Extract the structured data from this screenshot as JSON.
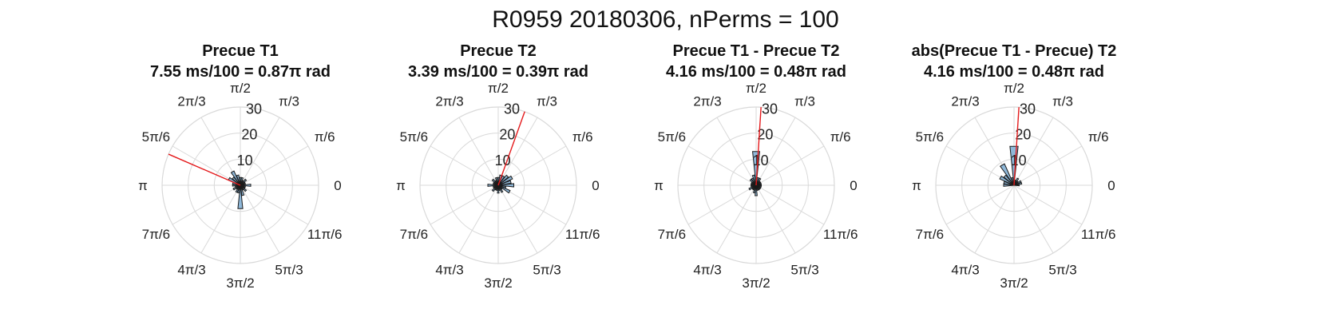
{
  "figure": {
    "title": "R0959 20180306, nPerms = 100"
  },
  "axes_common": {
    "theta_labels": [
      "0",
      "π/6",
      "π/3",
      "π/2",
      "2π/3",
      "5π/6",
      "π",
      "7π/6",
      "4π/3",
      "3π/2",
      "5π/3",
      "11π/6"
    ],
    "r_ticks": [
      "10",
      "20",
      "30"
    ],
    "r_max": 30,
    "bar_fill": "#8fb8d9",
    "bar_stroke": "#1a1a1a",
    "mean_line_color": "#e41a1c",
    "grid_color": "#d9d9d9"
  },
  "chart_data": [
    {
      "type": "polar-histogram",
      "title": "Precue T1",
      "subtitle": "7.55 ms/100 = 0.87π rad",
      "mean_angle_pi": 0.87,
      "bins_deg": [
        0,
        15,
        30,
        45,
        60,
        75,
        90,
        105,
        120,
        135,
        150,
        165,
        180,
        195,
        210,
        225,
        240,
        255,
        270,
        285,
        300,
        315,
        330,
        345
      ],
      "values": [
        4,
        2,
        2,
        3,
        2,
        3,
        3,
        4,
        6,
        4,
        5,
        3,
        3,
        2,
        3,
        2,
        3,
        3,
        9,
        4,
        2,
        3,
        2,
        2
      ]
    },
    {
      "type": "polar-histogram",
      "title": "Precue T2",
      "subtitle": "3.39 ms/100 = 0.39π rad",
      "mean_angle_pi": 0.39,
      "bins_deg": [
        0,
        15,
        30,
        45,
        60,
        75,
        90,
        105,
        120,
        135,
        150,
        165,
        180,
        195,
        210,
        225,
        240,
        255,
        270,
        285,
        300,
        315,
        330,
        345
      ],
      "values": [
        6,
        5,
        6,
        5,
        4,
        4,
        3,
        3,
        2,
        3,
        2,
        2,
        4,
        2,
        2,
        3,
        2,
        2,
        3,
        2,
        3,
        2,
        5,
        3
      ]
    },
    {
      "type": "polar-histogram",
      "title": "Precue T1 - Precue T2",
      "subtitle": "4.16 ms/100 = 0.48π rad",
      "mean_angle_pi": 0.48,
      "bins_deg": [
        0,
        15,
        30,
        45,
        60,
        75,
        90,
        105,
        120,
        135,
        150,
        165,
        180,
        195,
        210,
        225,
        240,
        255,
        270,
        285,
        300,
        315,
        330,
        345
      ],
      "values": [
        2,
        2,
        2,
        2,
        3,
        3,
        13,
        4,
        3,
        3,
        2,
        2,
        2,
        2,
        3,
        2,
        2,
        3,
        4,
        2,
        2,
        2,
        2,
        2
      ]
    },
    {
      "type": "polar-histogram",
      "title": "abs(Precue T1 - Precue) T2",
      "subtitle": "4.16 ms/100 = 0.48π rad",
      "mean_angle_pi": 0.48,
      "bins_deg": [
        0,
        15,
        30,
        45,
        60,
        75,
        90,
        105,
        120,
        135,
        150,
        165,
        180,
        195,
        210,
        225,
        240,
        255,
        270,
        285,
        300,
        315,
        330,
        345
      ],
      "values": [
        2,
        3,
        3,
        2,
        3,
        2,
        15,
        3,
        9,
        5,
        6,
        4,
        4,
        0,
        0,
        0,
        0,
        0,
        0,
        0,
        0,
        0,
        0,
        0
      ]
    }
  ]
}
